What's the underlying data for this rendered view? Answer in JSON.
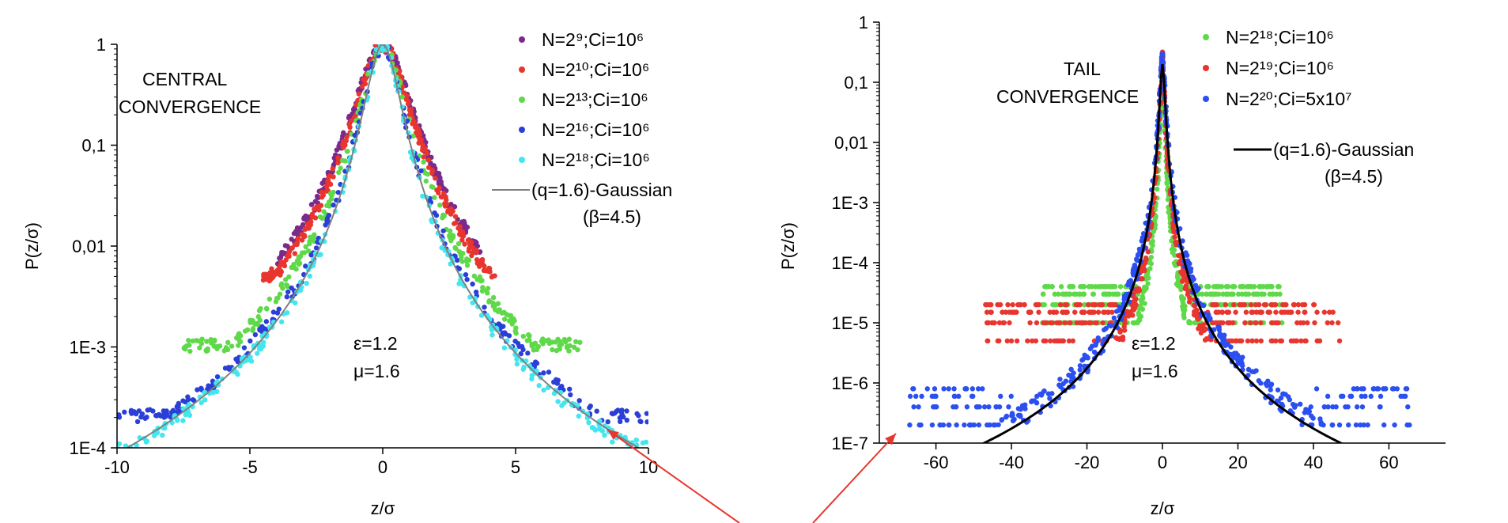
{
  "chart_data": [
    {
      "type": "scatter",
      "title": "CENTRAL\nCONVERGENCE",
      "xlabel": "z/σ",
      "ylabel": "P(z/σ)",
      "xlim": [
        -10,
        10
      ],
      "ylim": [
        0.0001,
        1
      ],
      "yscale": "log",
      "xticks": [
        -10,
        -5,
        0,
        5,
        10
      ],
      "xtick_labels": [
        "-10",
        "-5",
        "0",
        "5",
        "10"
      ],
      "yticks": [
        0.0001,
        0.001,
        0.01,
        0.1,
        1
      ],
      "ytick_labels": [
        "1E-4",
        "1E-3",
        "0,01",
        "0,1",
        "1"
      ],
      "annotations": [
        "ε=1.2",
        "μ=1.6"
      ],
      "legend_placement": "top-right",
      "series": [
        {
          "name": "N=2⁹;Ci=10⁶",
          "color": "#7b2a8c",
          "rate": 1.5,
          "q": 1.6,
          "spread": [
            -4,
            3.7
          ],
          "floor": 0.0025
        },
        {
          "name": "N=2¹⁰;Ci=10⁶",
          "color": "#e8352e",
          "rate": 1.4,
          "q": 1.6,
          "spread": [
            -4.5,
            4.3
          ],
          "floor": 0.005
        },
        {
          "name": "N=2¹³;Ci=10⁶",
          "color": "#5fd94a",
          "rate": 1.2,
          "q": 1.6,
          "spread": [
            -7.5,
            7.5
          ],
          "floor": 0.001
        },
        {
          "name": "N=2¹⁶;Ci=10⁶",
          "color": "#2b3fd6",
          "rate": 1.05,
          "q": 1.6,
          "spread": [
            -10,
            10
          ],
          "floor": 0.0002
        },
        {
          "name": "N=2¹⁸;Ci=10⁶",
          "color": "#43e6ee",
          "rate": 0.98,
          "q": 1.6,
          "spread": [
            -10,
            10
          ],
          "floor": 0.0001
        }
      ],
      "fit": {
        "name": "(q=1.6)-Gaussian",
        "sub": "(β=4.5)",
        "color": "#808080",
        "q": 1.6,
        "beta": 4.5,
        "peak": 1.0
      }
    },
    {
      "type": "scatter",
      "title": "TAIL\nCONVERGENCE",
      "xlabel": "z/σ",
      "ylabel": "P(z/σ)",
      "xlim": [
        -75,
        75
      ],
      "ylim": [
        1e-07,
        1
      ],
      "yscale": "log",
      "xticks": [
        -60,
        -40,
        -20,
        0,
        20,
        40,
        60
      ],
      "xtick_labels": [
        "-60",
        "-40",
        "-20",
        "0",
        "20",
        "40",
        "60"
      ],
      "yticks": [
        1e-07,
        1e-06,
        1e-05,
        0.0001,
        0.001,
        0.01,
        0.1,
        1
      ],
      "ytick_labels": [
        "1E-7",
        "1E-6",
        "1E-5",
        "1E-4",
        "1E-3",
        "0,01",
        "0,1",
        "1"
      ],
      "annotations": [
        "ε=1.2",
        "μ=1.6"
      ],
      "legend_placement": "top-right",
      "series": [
        {
          "name": "N=2¹⁸;Ci=10⁶",
          "color": "#5fd94a",
          "spread": [
            -32,
            32
          ],
          "floor": 1e-05
        },
        {
          "name": "N=2¹⁹;Ci=10⁶",
          "color": "#e8352e",
          "spread": [
            -47,
            47
          ],
          "floor": 5e-06
        },
        {
          "name": "N=2²⁰;Ci=5x10⁷",
          "color": "#2b4ff0",
          "spread": [
            -67,
            67
          ],
          "floor": 2e-07
        }
      ],
      "fit": {
        "name": "(q=1.6)-Gaussian",
        "sub": "(β=4.5)",
        "color": "#000000",
        "q": 1.6,
        "beta": 4.5,
        "peak": 0.2
      }
    }
  ],
  "arrow_color": "#e8352e"
}
